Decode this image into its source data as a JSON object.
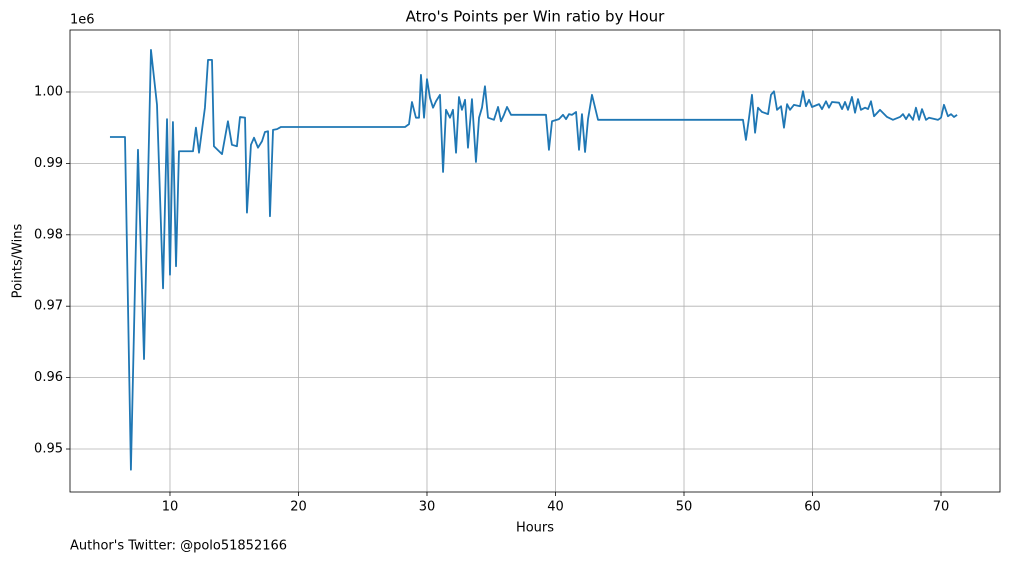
{
  "chart_data": {
    "type": "line",
    "title": "Atro's Points per Win ratio by Hour",
    "x_label": "Hours",
    "y_label": "Points/Wins",
    "y_offset_label": "1e6",
    "footnote": "Author's Twitter: @polo51852166",
    "grid": true,
    "xlim": [
      2.22,
      74.59
    ],
    "xticks": [
      10,
      20,
      30,
      40,
      50,
      60,
      70
    ],
    "ylim": [
      0.94398,
      1.00868
    ],
    "yticks": [
      0.95,
      0.96,
      0.97,
      0.98,
      0.99,
      {
        "value": 1.0,
        "label": "1.00"
      }
    ],
    "x": [
      5.33,
      6.5,
      6.96,
      7.51,
      7.98,
      8.52,
      8.99,
      9.46,
      9.77,
      10.0,
      10.23,
      10.47,
      10.7,
      11.79,
      12.02,
      12.26,
      12.72,
      12.96,
      13.27,
      13.42,
      14.05,
      14.51,
      14.82,
      15.21,
      15.45,
      15.84,
      15.99,
      16.3,
      16.54,
      16.85,
      17.16,
      17.39,
      17.63,
      17.78,
      18.02,
      18.33,
      18.64,
      28.29,
      28.6,
      28.83,
      29.14,
      29.38,
      29.53,
      29.77,
      30.0,
      30.23,
      30.47,
      30.7,
      31.01,
      31.25,
      31.48,
      31.79,
      32.02,
      32.26,
      32.49,
      32.72,
      32.96,
      33.19,
      33.5,
      33.81,
      34.05,
      34.28,
      34.51,
      34.75,
      35.21,
      35.53,
      35.76,
      35.99,
      36.23,
      36.54,
      39.26,
      39.49,
      39.73,
      40.27,
      40.58,
      40.82,
      41.05,
      41.28,
      41.6,
      41.83,
      42.06,
      42.3,
      42.53,
      42.84,
      43.31,
      54.59,
      54.82,
      55.06,
      55.29,
      55.53,
      55.76,
      56.07,
      56.54,
      56.77,
      57.0,
      57.24,
      57.55,
      57.78,
      58.02,
      58.25,
      58.56,
      59.03,
      59.26,
      59.49,
      59.73,
      59.96,
      60.51,
      60.74,
      61.05,
      61.28,
      61.52,
      62.06,
      62.3,
      62.53,
      62.76,
      63.07,
      63.31,
      63.54,
      63.77,
      64.09,
      64.32,
      64.55,
      64.79,
      65.25,
      65.8,
      66.26,
      66.81,
      67.04,
      67.28,
      67.51,
      67.82,
      68.05,
      68.29,
      68.52,
      68.83,
      69.07,
      69.53,
      69.77,
      70.0,
      70.23,
      70.54,
      70.78,
      71.01,
      71.25
    ],
    "series": [
      {
        "color": "#1f77b4",
        "values": [
          0.9937,
          0.9937,
          0.9471,
          0.9919,
          0.9626,
          1.0059,
          0.9982,
          0.9725,
          0.9962,
          0.9744,
          0.9958,
          0.9756,
          0.9917,
          0.9917,
          0.995,
          0.9915,
          0.9978,
          1.0045,
          1.0045,
          0.9924,
          0.9913,
          0.9959,
          0.9926,
          0.9924,
          0.9965,
          0.9964,
          0.9831,
          0.9926,
          0.9936,
          0.9922,
          0.9931,
          0.9944,
          0.9945,
          0.9826,
          0.9947,
          0.9948,
          0.9951,
          0.9951,
          0.9955,
          0.9986,
          0.9964,
          0.9964,
          1.0024,
          0.9964,
          1.0018,
          0.9992,
          0.9978,
          0.9987,
          0.9996,
          0.9888,
          0.9975,
          0.9964,
          0.9975,
          0.9915,
          0.9993,
          0.9975,
          0.9989,
          0.9922,
          0.999,
          0.9902,
          0.9964,
          0.9978,
          1.0008,
          0.9964,
          0.9961,
          0.9979,
          0.9959,
          0.9968,
          0.9979,
          0.9968,
          0.9968,
          0.9919,
          0.9959,
          0.9962,
          0.9968,
          0.9962,
          0.9969,
          0.9968,
          0.9972,
          0.9919,
          0.9969,
          0.9916,
          0.9962,
          0.9996,
          0.9961,
          0.9961,
          0.9933,
          0.9964,
          0.9996,
          0.9943,
          0.9978,
          0.9972,
          0.9969,
          0.9996,
          1.0001,
          0.9975,
          0.998,
          0.995,
          0.9983,
          0.9975,
          0.9982,
          0.998,
          1.0001,
          0.998,
          0.9989,
          0.9979,
          0.9983,
          0.9976,
          0.9987,
          0.9978,
          0.9986,
          0.9985,
          0.9976,
          0.9986,
          0.9975,
          0.9993,
          0.9971,
          0.999,
          0.9975,
          0.9978,
          0.9976,
          0.9987,
          0.9966,
          0.9975,
          0.9965,
          0.9961,
          0.9965,
          0.9969,
          0.9962,
          0.9969,
          0.9961,
          0.9978,
          0.9961,
          0.9976,
          0.9961,
          0.9964,
          0.9962,
          0.9961,
          0.9964,
          0.9982,
          0.9966,
          0.9969,
          0.9965,
          0.9968
        ]
      }
    ]
  }
}
